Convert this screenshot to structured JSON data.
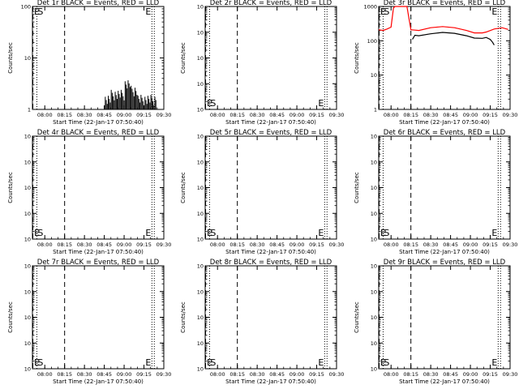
{
  "chart_data": {
    "type": "line",
    "x_ticks": [
      "08:00",
      "08:15",
      "08:30",
      "08:45",
      "09:00",
      "09:15",
      "09:30"
    ],
    "xlabel": "Start Time (22-Jan-17 07:50:40)",
    "ylabel": "Counts/sec",
    "marker_start": "S",
    "marker_end": "E",
    "colors": {
      "events": "#000000",
      "lld": "#ff0000"
    },
    "panels": [
      {
        "title": "Det 1r BLACK = Events, RED = LLD",
        "ylim": [
          1,
          100
        ],
        "yscale": "log",
        "y_ticks": [
          {
            "v": 1,
            "label": "1"
          },
          {
            "v": 10,
            "label": "10"
          },
          {
            "v": 100,
            "label": "100"
          }
        ],
        "series": [
          {
            "kind": "events",
            "style": "spiky",
            "x": [
              8.75,
              8.833,
              8.917,
              9.0,
              9.083,
              9.167,
              9.25
            ],
            "y": [
              1,
              1,
              1,
              1,
              1,
              1,
              1
            ],
            "y_top": [
              2,
              2.5,
              2.5,
              4,
              3,
              2,
              2
            ],
            "end": 9.4
          }
        ]
      },
      {
        "title": "Det 2r BLACK = Events, RED = LLD",
        "ylim": [
          0.0001,
          1
        ],
        "yscale": "log",
        "y_ticks": [
          {
            "v": 1,
            "label": "10"
          },
          {
            "v": 0.1,
            "label": "10"
          },
          {
            "v": 0.01,
            "label": "10"
          },
          {
            "v": 0.001,
            "label": "10"
          },
          {
            "v": 0.0001,
            "label": "10"
          }
        ],
        "series": []
      },
      {
        "title": "Det 3r BLACK = Events, RED = LLD",
        "ylim": [
          1,
          1000
        ],
        "yscale": "log",
        "y_ticks": [
          {
            "v": 1,
            "label": "1"
          },
          {
            "v": 10,
            "label": "10"
          },
          {
            "v": 100,
            "label": "100"
          },
          {
            "v": 1000,
            "label": "1000"
          }
        ],
        "series": [
          {
            "kind": "lld",
            "x": [
              7.844,
              7.9,
              7.95,
              8.0,
              8.03,
              8.05,
              8.07,
              8.12,
              8.2,
              8.25,
              8.35,
              8.5,
              8.65,
              8.8,
              8.95,
              9.05,
              9.15,
              9.2,
              9.3,
              9.4,
              9.475
            ],
            "y": [
              210,
              200,
              220,
              250,
              900,
              1000,
              1000,
              1000,
              1000,
              210,
              200,
              240,
              260,
              240,
              200,
              170,
              170,
              180,
              220,
              240,
              215
            ]
          },
          {
            "kind": "events",
            "x": [
              8.27,
              8.3,
              8.35,
              8.5,
              8.65,
              8.8,
              8.95,
              9.05,
              9.15,
              9.2,
              9.25,
              9.28,
              9.3
            ],
            "y": [
              110,
              145,
              140,
              160,
              175,
              165,
              140,
              120,
              118,
              125,
              110,
              90,
              75
            ]
          }
        ]
      },
      {
        "title": "Det 4r BLACK = Events, RED = LLD",
        "ylim": [
          0.0001,
          1
        ],
        "yscale": "log",
        "y_ticks": [
          {
            "v": 1,
            "label": "10"
          },
          {
            "v": 0.1,
            "label": "10"
          },
          {
            "v": 0.01,
            "label": "10"
          },
          {
            "v": 0.001,
            "label": "10"
          },
          {
            "v": 0.0001,
            "label": "10"
          }
        ],
        "series": []
      },
      {
        "title": "Det 5r BLACK = Events, RED = LLD",
        "ylim": [
          0.0001,
          1
        ],
        "yscale": "log",
        "y_ticks": [
          {
            "v": 1,
            "label": "10"
          },
          {
            "v": 0.1,
            "label": "10"
          },
          {
            "v": 0.01,
            "label": "10"
          },
          {
            "v": 0.001,
            "label": "10"
          },
          {
            "v": 0.0001,
            "label": "10"
          }
        ],
        "series": []
      },
      {
        "title": "Det 6r BLACK = Events, RED = LLD",
        "ylim": [
          0.0001,
          1
        ],
        "yscale": "log",
        "y_ticks": [
          {
            "v": 1,
            "label": "10"
          },
          {
            "v": 0.1,
            "label": "10"
          },
          {
            "v": 0.01,
            "label": "10"
          },
          {
            "v": 0.001,
            "label": "10"
          },
          {
            "v": 0.0001,
            "label": "10"
          }
        ],
        "series": []
      },
      {
        "title": "Det 7r BLACK = Events, RED = LLD",
        "ylim": [
          0.0001,
          1
        ],
        "yscale": "log",
        "y_ticks": [
          {
            "v": 1,
            "label": "10"
          },
          {
            "v": 0.1,
            "label": "10"
          },
          {
            "v": 0.01,
            "label": "10"
          },
          {
            "v": 0.001,
            "label": "10"
          },
          {
            "v": 0.0001,
            "label": "10"
          }
        ],
        "series": []
      },
      {
        "title": "Det 8r BLACK = Events, RED = LLD",
        "ylim": [
          0.0001,
          1
        ],
        "yscale": "log",
        "y_ticks": [
          {
            "v": 1,
            "label": "10"
          },
          {
            "v": 0.1,
            "label": "10"
          },
          {
            "v": 0.01,
            "label": "10"
          },
          {
            "v": 0.001,
            "label": "10"
          },
          {
            "v": 0.0001,
            "label": "10"
          }
        ],
        "series": []
      },
      {
        "title": "Det 9r BLACK = Events, RED = LLD",
        "ylim": [
          0.0001,
          1
        ],
        "yscale": "log",
        "y_ticks": [
          {
            "v": 1,
            "label": "10"
          },
          {
            "v": 0.1,
            "label": "10"
          },
          {
            "v": 0.01,
            "label": "10"
          },
          {
            "v": 0.001,
            "label": "10"
          },
          {
            "v": 0.0001,
            "label": "10"
          }
        ],
        "series": []
      }
    ]
  }
}
